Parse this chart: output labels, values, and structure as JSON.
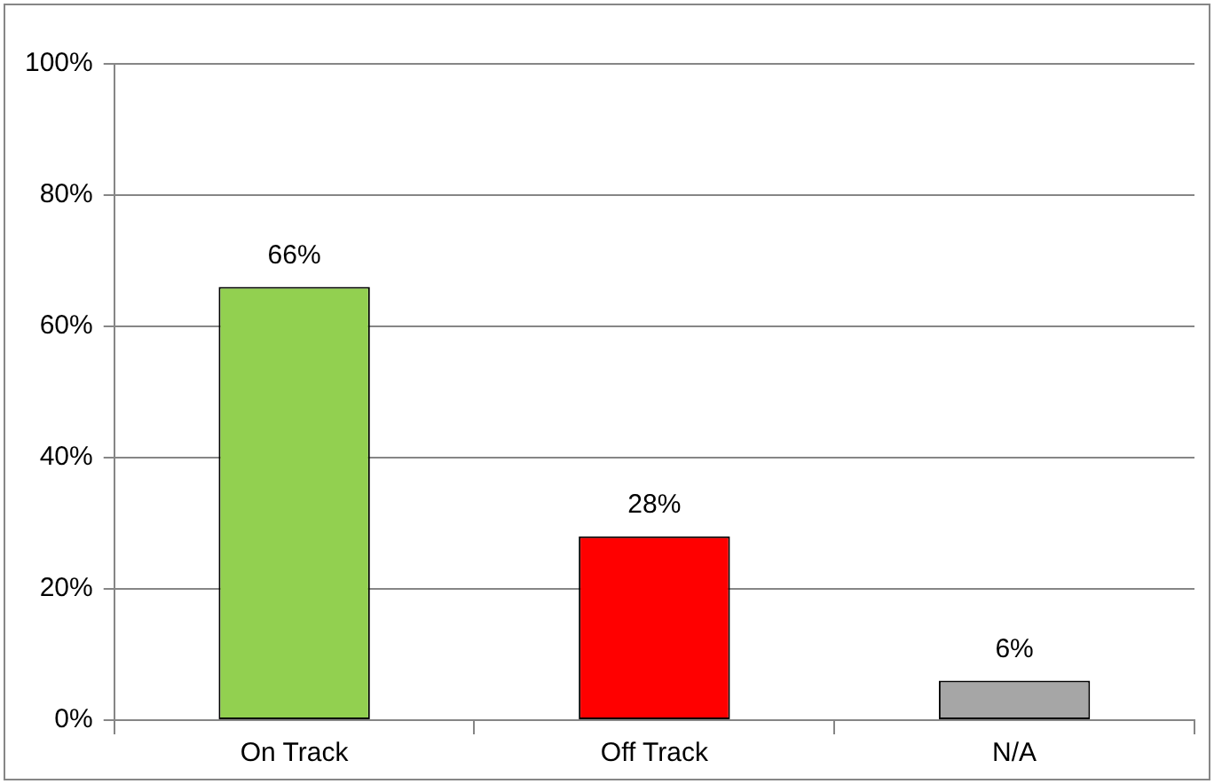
{
  "chart_data": {
    "type": "bar",
    "categories": [
      "On Track",
      "Off Track",
      "N/A"
    ],
    "values": [
      66,
      28,
      6
    ],
    "colors": [
      "#92d050",
      "#ff0000",
      "#a6a6a6"
    ],
    "value_labels": [
      "66%",
      "28%",
      "6%"
    ],
    "ylim": [
      0,
      100
    ],
    "yticks": [
      {
        "value": 0,
        "label": "0%"
      },
      {
        "value": 20,
        "label": "20%"
      },
      {
        "value": 40,
        "label": "40%"
      },
      {
        "value": 60,
        "label": "60%"
      },
      {
        "value": 80,
        "label": "80%"
      },
      {
        "value": 100,
        "label": "100%"
      }
    ],
    "grid": "y",
    "legend": false
  }
}
